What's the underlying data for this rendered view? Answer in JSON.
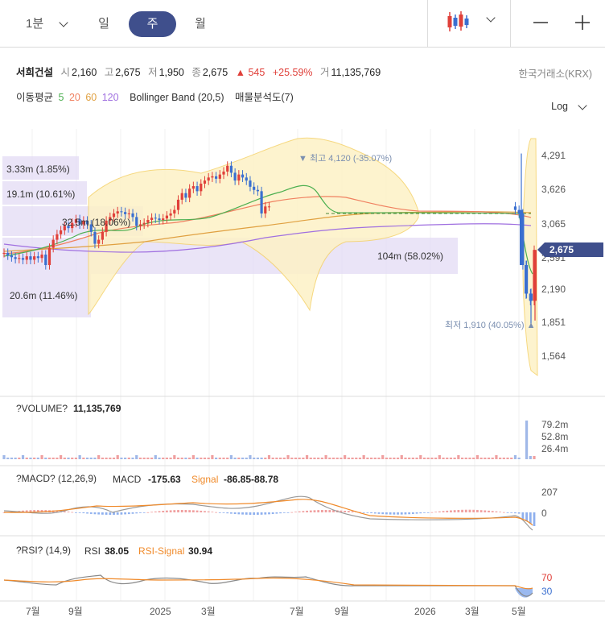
{
  "toolbar": {
    "interval_minute": "1분",
    "tab_day": "일",
    "tab_week": "주",
    "tab_month": "월",
    "chart_type_icon": "candlestick-icon",
    "zoom_out_icon": "minus-icon",
    "zoom_in_icon": "plus-icon"
  },
  "quote": {
    "name": "서희건설",
    "open_label": "시",
    "open": "2,160",
    "high_label": "고",
    "high": "2,675",
    "low_label": "저",
    "low": "1,950",
    "close_label": "종",
    "close": "2,675",
    "change": "▲ 545",
    "change_pct": "+25.59%",
    "volume_label": "거",
    "volume": "11,135,769",
    "exchange": "한국거래소(KRX)"
  },
  "indicators": {
    "ma_label": "이동평균",
    "ma_periods": [
      "5",
      "20",
      "60",
      "120"
    ],
    "ma_colors": [
      "#4caf50",
      "#f08060",
      "#e0a040",
      "#a070e0"
    ],
    "bb_label": "Bollinger Band (20,5)",
    "vp_label": "매물분석도(7)"
  },
  "scale_mode": "Log",
  "colors": {
    "up": "#e0403a",
    "down": "#3a6fd0",
    "accent": "#3f4f8c"
  },
  "price_panel": {
    "y_ticks": [
      "4,291",
      "3,626",
      "3,065",
      "2,591",
      "2,190",
      "1,851",
      "1,564"
    ],
    "current_price_badge": "2,675",
    "high_marker": "▼ 최고 4,120 (-35.07%)",
    "low_marker": "최저 1,910 (40.05%) ▲",
    "volume_profile_labels": [
      "3.33m (1.85%)",
      "19.1m (10.61%)",
      "32.5m (18.06%)",
      "104m (58.02%)",
      "20.6m (11.46%)"
    ]
  },
  "volume_panel": {
    "title": "?VOLUME?",
    "value": "11,135,769",
    "y_ticks": [
      "79.2m",
      "52.8m",
      "26.4m"
    ]
  },
  "macd_panel": {
    "title": "?MACD? (12,26,9)",
    "macd_label": "MACD",
    "macd_value": "-175.63",
    "signal_label": "Signal",
    "signal_values": "-86.85-88.78",
    "y_ticks": [
      "207",
      "0"
    ]
  },
  "rsi_panel": {
    "title": "?RSI? (14,9)",
    "rsi_label": "RSI",
    "rsi_value": "38.05",
    "signal_label": "RSI-Signal",
    "signal_value": "30.94",
    "y_ticks": [
      "70",
      "30"
    ]
  },
  "x_axis_labels": [
    "7월",
    "9월",
    "2025",
    "3월",
    "7월",
    "9월",
    "2026",
    "3월",
    "5월"
  ],
  "chart_data": {
    "type": "candlestick",
    "y_scale": "log",
    "ylim": [
      1450,
      4600
    ],
    "price_high": 4120,
    "price_low": 1910,
    "last_close": 2675,
    "close_series": [
      2640,
      2610,
      2590,
      2570,
      2580,
      2560,
      2600,
      2560,
      2600,
      2580,
      2620,
      2500,
      2700,
      2800,
      2870,
      2920,
      2980,
      2950,
      3020,
      3070,
      3000,
      3050,
      3000,
      2900,
      2750,
      2800,
      2900,
      3050,
      3100,
      3150,
      3180,
      3170,
      3140,
      3150,
      3100,
      2980,
      3000,
      3020,
      3060,
      3090,
      3080,
      3060,
      3080,
      3120,
      3150,
      3200,
      3350,
      3450,
      3380,
      3520,
      3560,
      3480,
      3600,
      3650,
      3700,
      3720,
      3680,
      3750,
      3800,
      3900,
      3780,
      3650,
      3750,
      3700,
      3650,
      3550,
      3500,
      3480,
      3150,
      3250,
      3250,
      3250,
      3250,
      3250,
      3250,
      3250,
      3250,
      3250,
      3250,
      3250,
      3250,
      3250,
      3250,
      3250,
      3250,
      3250,
      3250,
      3250,
      3250,
      3250,
      3250,
      3250,
      3250,
      3250,
      3250,
      3250,
      3250,
      3250,
      3250,
      3250,
      3250,
      3250,
      3250,
      3250,
      3250,
      3250,
      3250,
      3250,
      3250,
      3250,
      3250,
      3250,
      3250,
      3250,
      3250,
      3250,
      3250,
      3250,
      3250,
      3250,
      3250,
      3250,
      3250,
      3250,
      3250,
      3250,
      3250,
      3250,
      3250,
      3250,
      3250,
      3250,
      3250,
      3250,
      3250,
      3200,
      3150,
      2500,
      2200,
      2130,
      2675
    ],
    "x_labels": [
      "7월",
      "9월",
      "2025",
      "3월",
      "7월",
      "9월",
      "2026",
      "3월",
      "5월"
    ]
  }
}
